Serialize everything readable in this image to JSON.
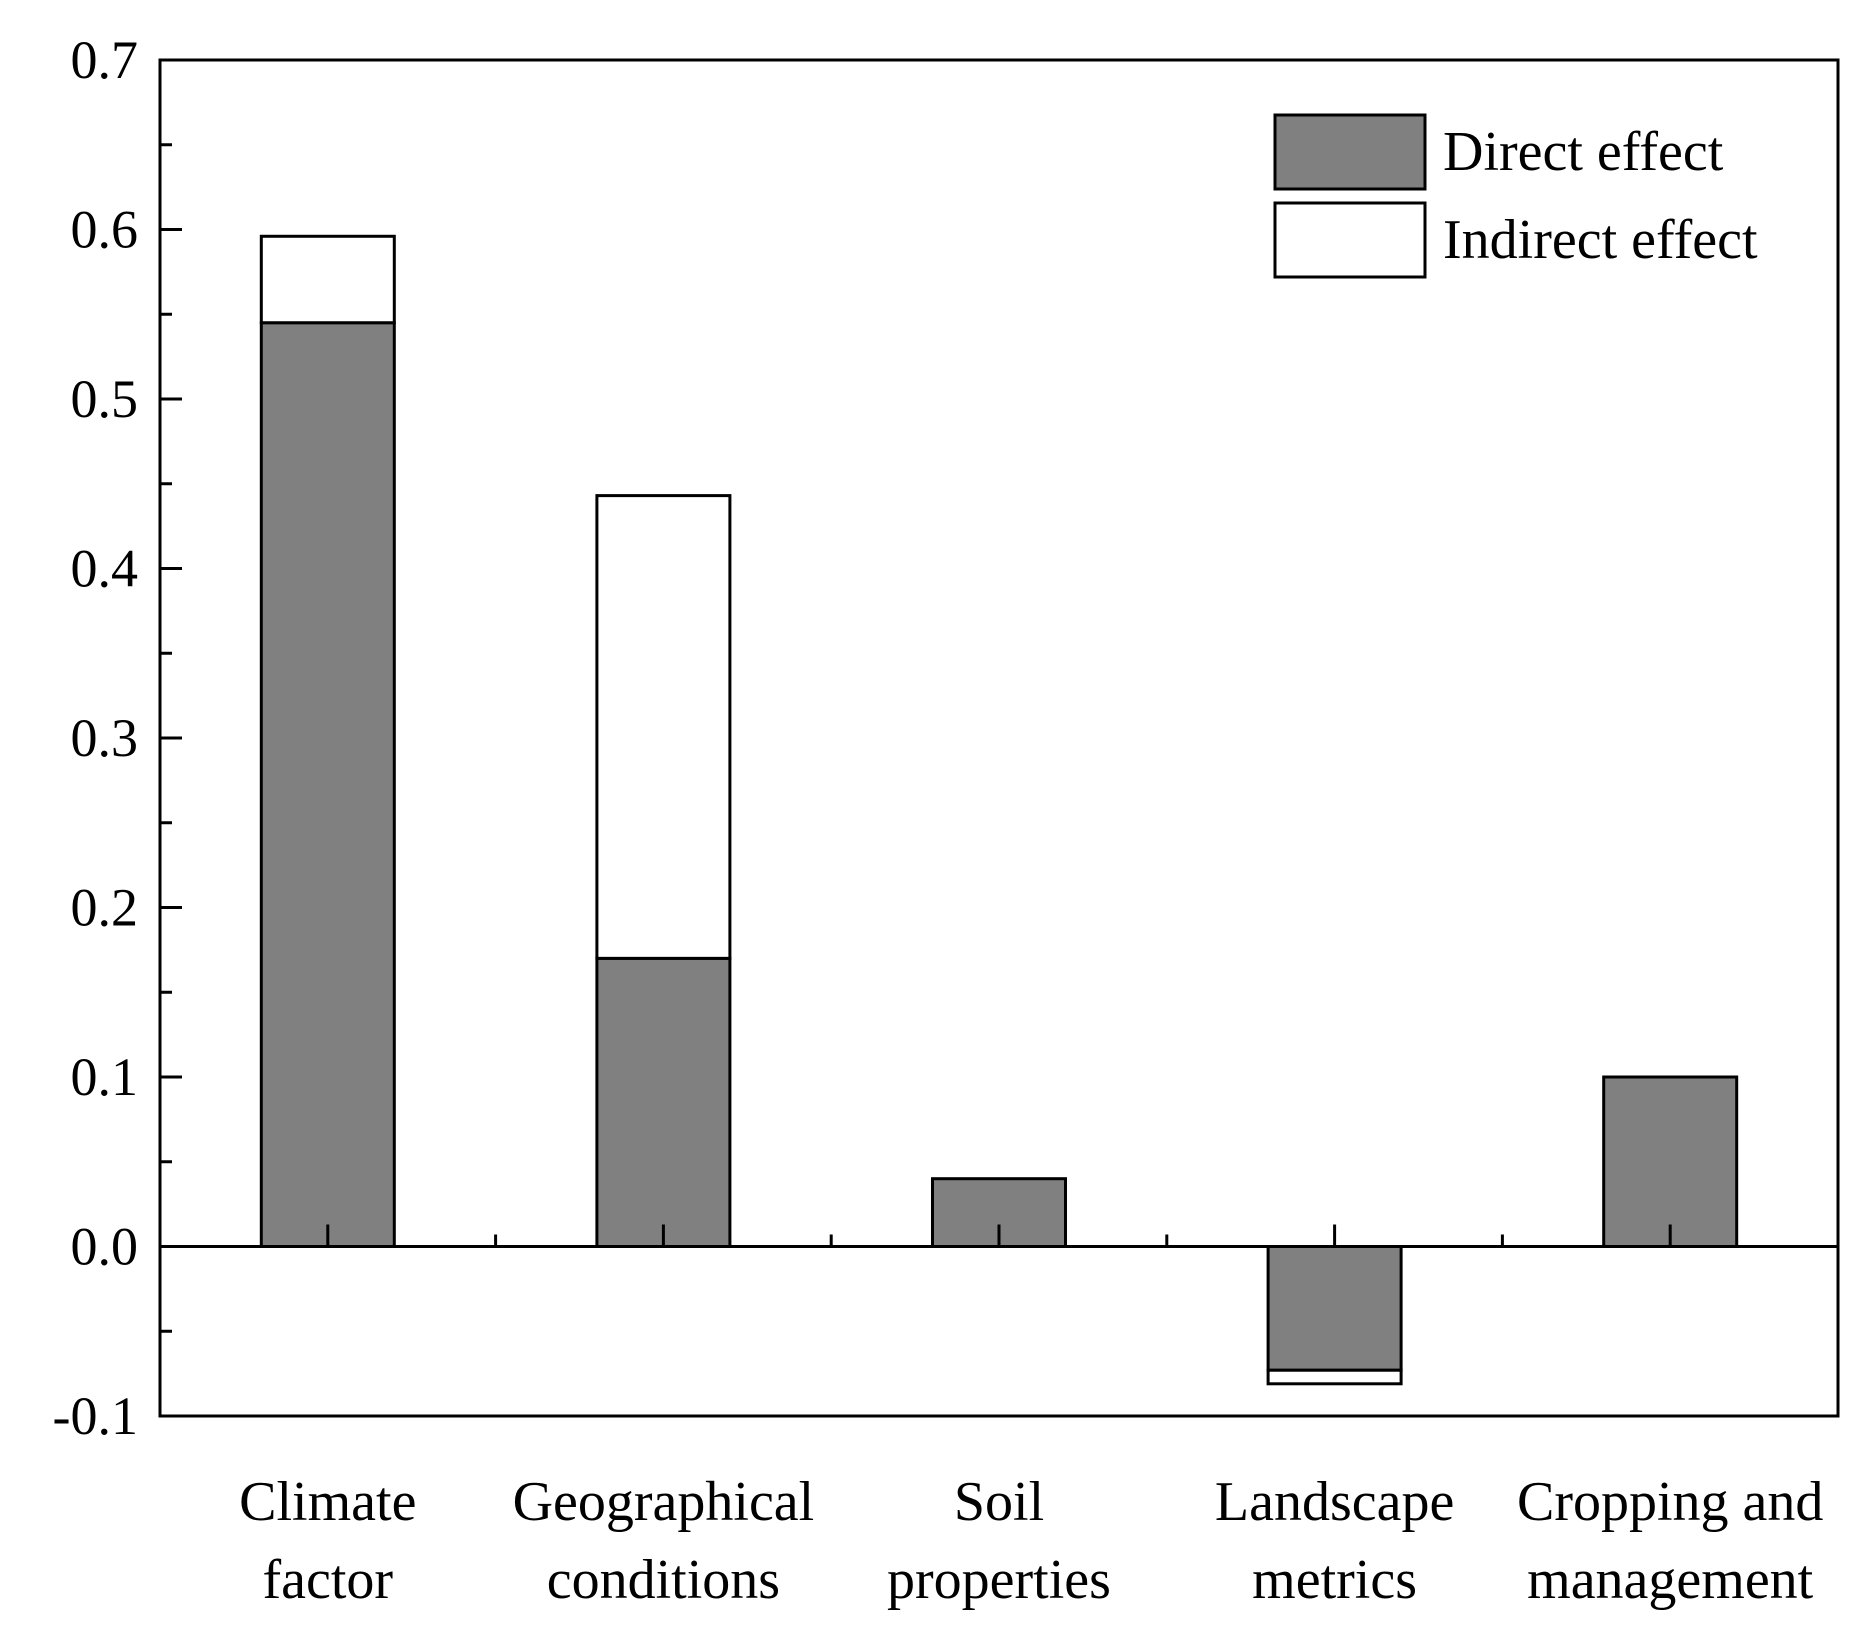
{
  "chart_data": {
    "type": "bar",
    "stacked": true,
    "title": "",
    "xlabel": "",
    "ylabel": "",
    "ylim": [
      -0.1,
      0.7
    ],
    "yticks": [
      "-0.1",
      "0.0",
      "0.1",
      "0.2",
      "0.3",
      "0.4",
      "0.5",
      "0.6",
      "0.7"
    ],
    "categories": [
      [
        "Climate",
        "factor"
      ],
      [
        "Geographical",
        "conditions"
      ],
      [
        "Soil",
        "properties"
      ],
      [
        "Landscape",
        "metrics"
      ],
      [
        "Cropping and",
        "management"
      ]
    ],
    "series": [
      {
        "name": "Direct effect",
        "color": "#808080",
        "values": [
          0.545,
          0.17,
          0.04,
          -0.073,
          0.1
        ]
      },
      {
        "name": "Indirect effect",
        "color": "#ffffff",
        "values": [
          0.051,
          0.273,
          0.0,
          -0.008,
          0.0
        ]
      }
    ],
    "legend_position": "top-right",
    "grid": false
  }
}
